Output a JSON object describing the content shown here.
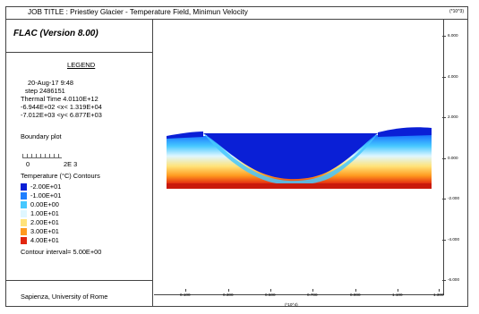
{
  "header": {
    "title": "JOB TITLE : Priestley Glacier - Temperature Field, Minimun Velocity",
    "scale_top": "(*10^3)"
  },
  "sidebar": {
    "software": "FLAC (Version 8.00)",
    "legend_label": "LEGEND",
    "date_line": "20-Aug-17  9:48",
    "step_line": "step  2486151",
    "thermal_time_line": "Thermal Time  4.0110E+12",
    "x_range_line": "-6.944E+02 <x< 1.319E+04",
    "y_range_line": "-7.012E+03 <y< 6.877E+03",
    "boundary_label": "Boundary plot",
    "boundary_scale_min": "0",
    "boundary_scale_max": "2E  3",
    "contours_title": "Temperature (°C) Contours",
    "contour_items": [
      {
        "label": "-2.00E+01",
        "color": "#0a1fd6"
      },
      {
        "label": "-1.00E+01",
        "color": "#1f7fff"
      },
      {
        "label": "0.00E+00",
        "color": "#46c8ff"
      },
      {
        "label": "1.00E+01",
        "color": "#dff7ff"
      },
      {
        "label": "2.00E+01",
        "color": "#ffe37a"
      },
      {
        "label": "3.00E+01",
        "color": "#ff9a1f"
      },
      {
        "label": "4.00E+01",
        "color": "#e2260f"
      }
    ],
    "contour_interval": "Contour interval=  5.00E+00",
    "institution": "Sapienza, University of Rome"
  },
  "plot": {
    "y_ticks": [
      "6.000",
      "4.000",
      "2.000",
      "0.000",
      "-2.000",
      "-4.000",
      "-6.000"
    ],
    "x_ticks": [
      "0.100",
      "0.300",
      "0.500",
      "0.700",
      "0.900",
      "1.100",
      "1.300"
    ],
    "x_unit": "(*10^4)"
  }
}
